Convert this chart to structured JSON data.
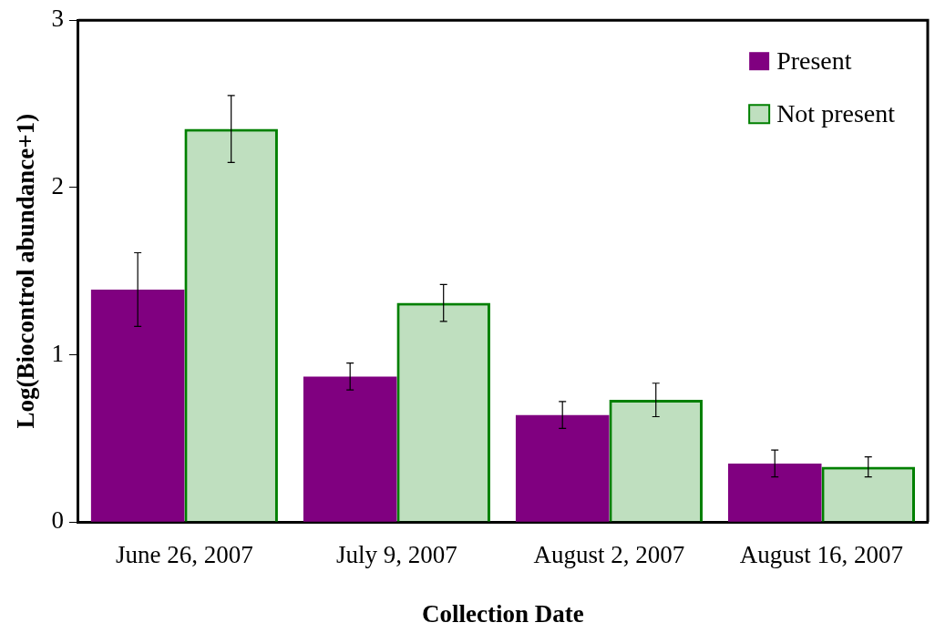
{
  "chart_data": {
    "type": "bar",
    "xlabel": "Collection Date",
    "ylabel": "Log(Biocontrol abundance+1)",
    "categories": [
      "June 26, 2007",
      "July 9, 2007",
      "August 2, 2007",
      "August 16, 2007"
    ],
    "series": [
      {
        "name": "Present",
        "color": "#800080",
        "values": [
          1.39,
          0.87,
          0.64,
          0.35
        ],
        "errors": [
          0.22,
          0.08,
          0.08,
          0.08
        ]
      },
      {
        "name": "Not present",
        "color": "#008000",
        "values": [
          2.35,
          1.31,
          0.73,
          0.33
        ],
        "errors": [
          0.2,
          0.11,
          0.1,
          0.06
        ]
      }
    ],
    "ylim": [
      0,
      3
    ],
    "yticks": [
      0,
      1,
      2,
      3
    ],
    "grid": false,
    "legend": "top right"
  }
}
